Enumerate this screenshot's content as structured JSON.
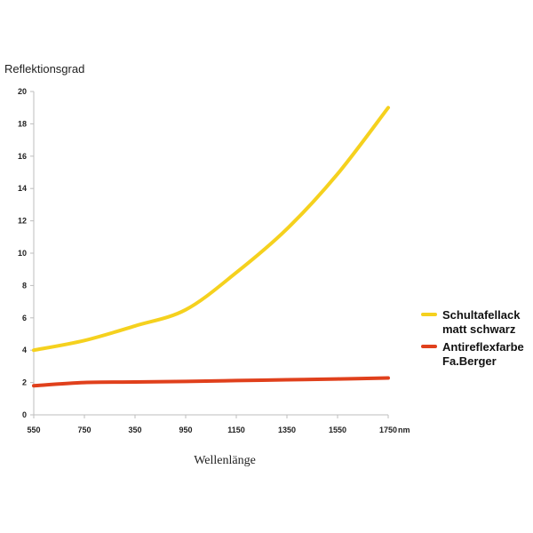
{
  "chart_data": {
    "type": "line",
    "xlabel": "Wellenlänge",
    "ylabel": "Reflektionsgrad",
    "x_unit": "nm",
    "categories": [
      "550",
      "750",
      "350",
      "950",
      "1150",
      "1350",
      "1550",
      "1750"
    ],
    "ylim": [
      0,
      20
    ],
    "yticks": [
      0,
      2,
      4,
      6,
      8,
      10,
      12,
      14,
      16,
      18,
      20
    ],
    "grid": false,
    "legend": "right",
    "series": [
      {
        "name_lines": [
          "Schultafellack",
          "matt schwarz"
        ],
        "color": "#f5d11e",
        "values": [
          4.0,
          4.6,
          5.5,
          6.5,
          8.8,
          11.5,
          14.9,
          19.0
        ]
      },
      {
        "name_lines": [
          "Antireflexfarbe",
          "Fa.Berger"
        ],
        "color": "#e0401c",
        "values": [
          1.8,
          2.0,
          2.03,
          2.07,
          2.12,
          2.17,
          2.22,
          2.28
        ]
      }
    ]
  }
}
